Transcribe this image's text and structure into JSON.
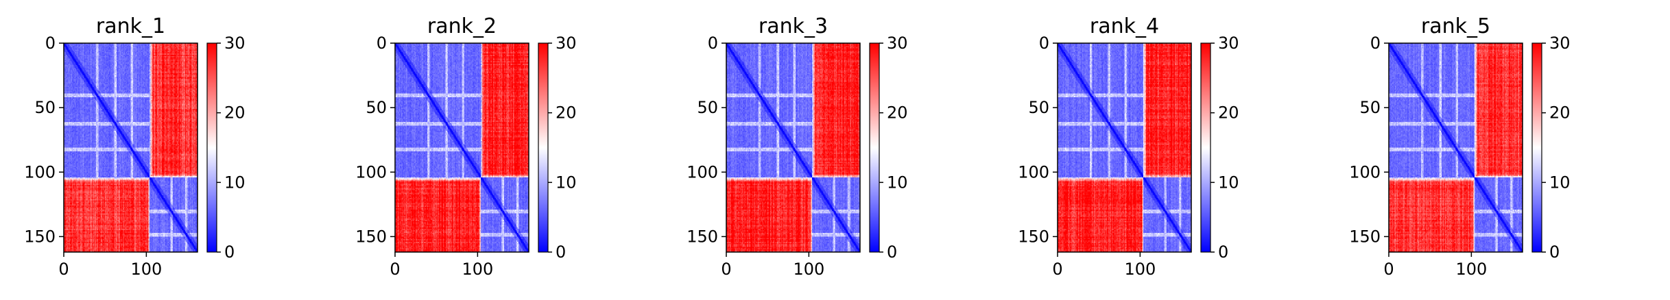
{
  "figure": {
    "description_none": null
  },
  "chart_data": [
    {
      "type": "heatmap",
      "title": "rank_1",
      "xlim": [
        0,
        162
      ],
      "ylim": [
        162,
        0
      ],
      "xticks": [
        0,
        100
      ],
      "yticks": [
        0,
        50,
        100,
        150
      ],
      "colorbar": {
        "min": 0,
        "max": 30,
        "ticks": [
          0,
          10,
          20,
          30
        ],
        "colors": [
          "#0000ff",
          "#ffffff",
          "#ff0000"
        ]
      },
      "domain_split": 104,
      "intra_domain_error": 4,
      "inter_domain_error": 27,
      "bright_rows": [
        40,
        62,
        82,
        130,
        148
      ]
    },
    {
      "type": "heatmap",
      "title": "rank_2",
      "xlim": [
        0,
        162
      ],
      "ylim": [
        162,
        0
      ],
      "xticks": [
        0,
        100
      ],
      "yticks": [
        0,
        50,
        100,
        150
      ],
      "colorbar": {
        "min": 0,
        "max": 30,
        "ticks": [
          0,
          10,
          20,
          30
        ],
        "colors": [
          "#0000ff",
          "#ffffff",
          "#ff0000"
        ]
      },
      "domain_split": 104,
      "intra_domain_error": 4,
      "inter_domain_error": 28,
      "bright_rows": [
        40,
        62,
        82,
        130,
        148
      ]
    },
    {
      "type": "heatmap",
      "title": "rank_3",
      "xlim": [
        0,
        162
      ],
      "ylim": [
        162,
        0
      ],
      "xticks": [
        0,
        100
      ],
      "yticks": [
        0,
        50,
        100,
        150
      ],
      "colorbar": {
        "min": 0,
        "max": 30,
        "ticks": [
          0,
          10,
          20,
          30
        ],
        "colors": [
          "#0000ff",
          "#ffffff",
          "#ff0000"
        ]
      },
      "domain_split": 104,
      "intra_domain_error": 4,
      "inter_domain_error": 28,
      "bright_rows": [
        40,
        62,
        82,
        130,
        148
      ]
    },
    {
      "type": "heatmap",
      "title": "rank_4",
      "xlim": [
        0,
        162
      ],
      "ylim": [
        162,
        0
      ],
      "xticks": [
        0,
        100
      ],
      "yticks": [
        0,
        50,
        100,
        150
      ],
      "colorbar": {
        "min": 0,
        "max": 30,
        "ticks": [
          0,
          10,
          20,
          30
        ],
        "colors": [
          "#0000ff",
          "#ffffff",
          "#ff0000"
        ]
      },
      "domain_split": 104,
      "intra_domain_error": 4,
      "inter_domain_error": 28,
      "bright_rows": [
        40,
        62,
        82,
        130,
        148
      ]
    },
    {
      "type": "heatmap",
      "title": "rank_5",
      "xlim": [
        0,
        162
      ],
      "ylim": [
        162,
        0
      ],
      "xticks": [
        0,
        100
      ],
      "yticks": [
        0,
        50,
        100,
        150
      ],
      "colorbar": {
        "min": 0,
        "max": 30,
        "ticks": [
          0,
          10,
          20,
          30
        ],
        "colors": [
          "#0000ff",
          "#ffffff",
          "#ff0000"
        ]
      },
      "domain_split": 104,
      "intra_domain_error": 4,
      "inter_domain_error": 27,
      "bright_rows": [
        40,
        62,
        82,
        130,
        148
      ]
    }
  ]
}
